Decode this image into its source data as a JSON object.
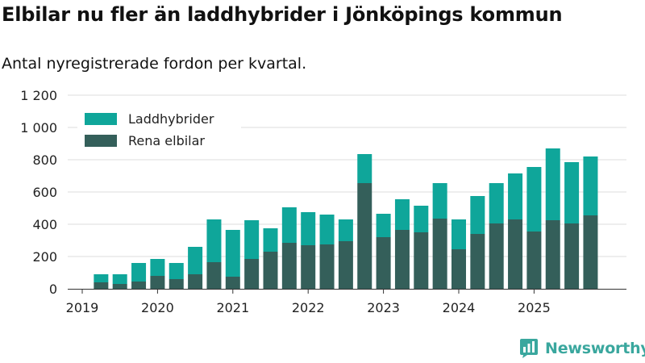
{
  "title": "Elbilar nu fler än laddhybrider i Jönköpings kommun",
  "subtitle": "Antal nyregistrerade fordon per kvartal.",
  "brand": "Newsworthy",
  "colors": {
    "laddhybrider": "#0fa69a",
    "rena_elbilar": "#345f5a",
    "brand": "#3aa79e",
    "grid": "#dddddd"
  },
  "chart_data": {
    "type": "bar",
    "stacked": true,
    "title": "Elbilar nu fler än laddhybrider i Jönköpings kommun",
    "subtitle": "Antal nyregistrerade fordon per kvartal.",
    "xlabel": "",
    "ylabel": "",
    "ylim": [
      0,
      1200
    ],
    "yticks": [
      0,
      200,
      400,
      600,
      800,
      1000,
      1200
    ],
    "ytick_labels": [
      "0",
      "200",
      "400",
      "600",
      "800",
      "1 000",
      "1 200"
    ],
    "xtick_labels": [
      "2019",
      "2020",
      "2021",
      "2022",
      "2023",
      "2024",
      "2025"
    ],
    "xtick_positions": [
      0,
      4,
      8,
      12,
      16,
      20,
      24
    ],
    "legend_position": "top-left",
    "categories": [
      "2019 Q2",
      "2019 Q3",
      "2019 Q4",
      "2020 Q1",
      "2020 Q2",
      "2020 Q3",
      "2020 Q4",
      "2021 Q1",
      "2021 Q2",
      "2021 Q3",
      "2021 Q4",
      "2022 Q1",
      "2022 Q2",
      "2022 Q3",
      "2022 Q4",
      "2023 Q1",
      "2023 Q2",
      "2023 Q3",
      "2023 Q4",
      "2024 Q1",
      "2024 Q2",
      "2024 Q3",
      "2024 Q4",
      "2025 Q1",
      "2025 Q2",
      "2025 Q3",
      "2025 Q4"
    ],
    "x_positions": [
      1,
      2,
      3,
      4,
      5,
      6,
      7,
      8,
      9,
      10,
      11,
      12,
      13,
      14,
      15,
      16,
      17,
      18,
      19,
      20,
      21,
      22,
      23,
      24,
      25,
      26,
      27
    ],
    "series": [
      {
        "name": "Rena elbilar",
        "color": "#345f5a",
        "values": [
          40,
          30,
          45,
          80,
          60,
          90,
          165,
          75,
          185,
          230,
          285,
          270,
          275,
          295,
          655,
          320,
          365,
          350,
          435,
          245,
          340,
          405,
          430,
          355,
          425,
          405,
          455
        ]
      },
      {
        "name": "Laddhybrider",
        "color": "#0fa69a",
        "values": [
          50,
          60,
          115,
          105,
          100,
          170,
          265,
          290,
          240,
          145,
          220,
          205,
          185,
          135,
          180,
          145,
          190,
          165,
          220,
          185,
          235,
          250,
          285,
          400,
          445,
          380,
          365
        ]
      }
    ],
    "legend": [
      "Laddhybrider",
      "Rena elbilar"
    ]
  }
}
